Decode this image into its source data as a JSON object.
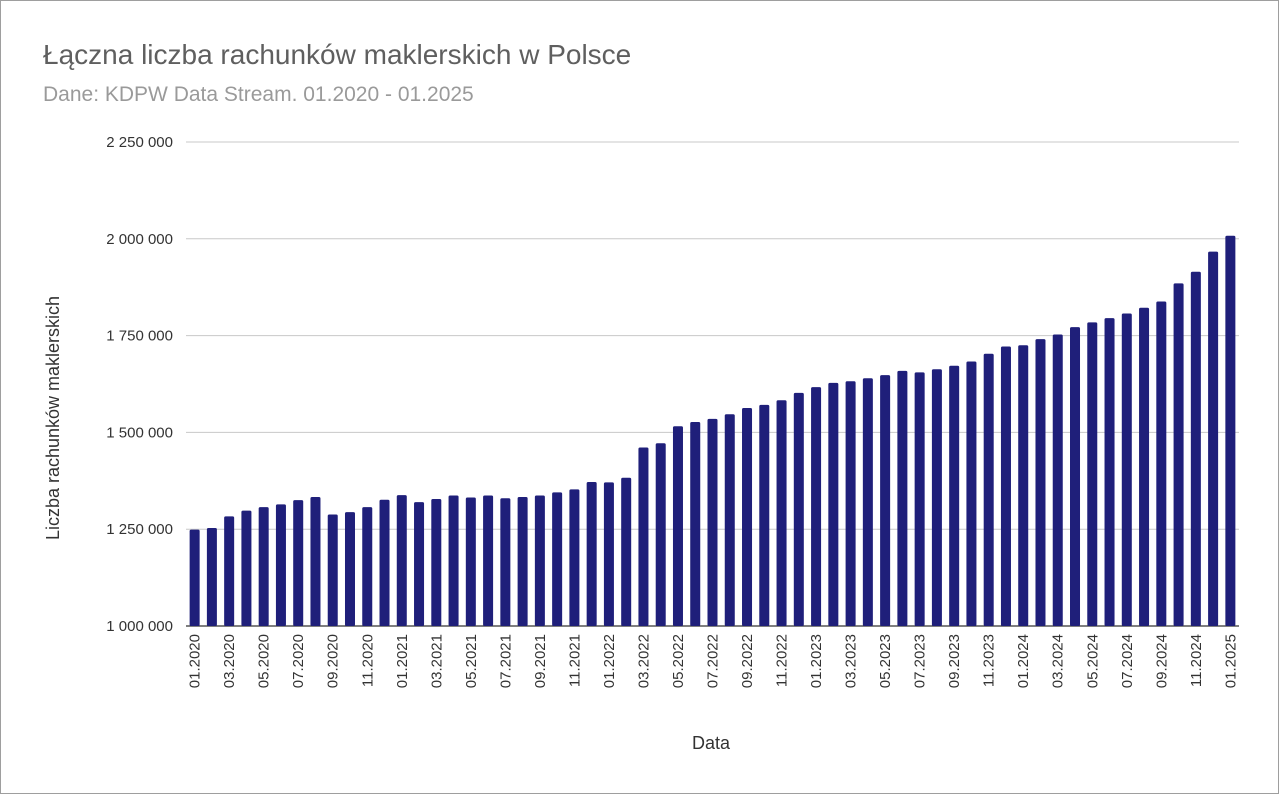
{
  "chart_data": {
    "type": "bar",
    "title": "Łączna liczba rachunków maklerskich w Polsce",
    "subtitle": "Dane: KDPW Data Stream. 01.2020 - 01.2025",
    "xlabel": "Data",
    "ylabel": "Liczba rachunków maklerskich",
    "ylim": [
      1000000,
      2250000
    ],
    "y_ticks": [
      1000000,
      1250000,
      1500000,
      1750000,
      2000000,
      2250000
    ],
    "y_tick_labels": [
      "1 000 000",
      "1 250 000",
      "1 500 000",
      "1 750 000",
      "2 000 000",
      "2 250 000"
    ],
    "grid": true,
    "legend": "none",
    "bar_color": "#1f1f7a",
    "categories": [
      "01.2020",
      "02.2020",
      "03.2020",
      "04.2020",
      "05.2020",
      "06.2020",
      "07.2020",
      "08.2020",
      "09.2020",
      "10.2020",
      "11.2020",
      "12.2020",
      "01.2021",
      "02.2021",
      "03.2021",
      "04.2021",
      "05.2021",
      "06.2021",
      "07.2021",
      "08.2021",
      "09.2021",
      "10.2021",
      "11.2021",
      "12.2021",
      "01.2022",
      "02.2022",
      "03.2022",
      "04.2022",
      "05.2022",
      "06.2022",
      "07.2022",
      "08.2022",
      "09.2022",
      "10.2022",
      "11.2022",
      "12.2022",
      "01.2023",
      "02.2023",
      "03.2023",
      "04.2023",
      "05.2023",
      "06.2023",
      "07.2023",
      "08.2023",
      "09.2023",
      "10.2023",
      "11.2023",
      "12.2023",
      "01.2024",
      "02.2024",
      "03.2024",
      "04.2024",
      "05.2024",
      "06.2024",
      "07.2024",
      "08.2024",
      "09.2024",
      "10.2024",
      "11.2024",
      "12.2024",
      "01.2025"
    ],
    "visible_x_labels": [
      "01.2020",
      "03.2020",
      "05.2020",
      "07.2020",
      "09.2020",
      "11.2020",
      "01.2021",
      "03.2021",
      "05.2021",
      "07.2021",
      "09.2021",
      "11.2021",
      "01.2022",
      "03.2022",
      "05.2022",
      "07.2022",
      "09.2022",
      "11.2022",
      "01.2023",
      "03.2023",
      "05.2023",
      "07.2023",
      "09.2023",
      "11.2023",
      "01.2024",
      "03.2024",
      "05.2024",
      "07.2024",
      "09.2024",
      "11.2024",
      "01.2025"
    ],
    "values": [
      1249000,
      1253000,
      1283000,
      1298000,
      1307000,
      1314000,
      1325000,
      1333000,
      1288000,
      1294000,
      1307000,
      1326000,
      1338000,
      1320000,
      1328000,
      1337000,
      1332000,
      1337000,
      1330000,
      1333000,
      1337000,
      1345000,
      1353000,
      1372000,
      1371000,
      1383000,
      1461000,
      1472000,
      1516000,
      1527000,
      1535000,
      1547000,
      1563000,
      1571000,
      1583000,
      1602000,
      1617000,
      1628000,
      1632000,
      1640000,
      1648000,
      1659000,
      1655000,
      1663000,
      1672000,
      1683000,
      1703000,
      1722000,
      1725000,
      1741000,
      1753000,
      1772000,
      1784000,
      1795000,
      1807000,
      1822000,
      1838000,
      1885000,
      1915000,
      1967000,
      2008000
    ]
  }
}
